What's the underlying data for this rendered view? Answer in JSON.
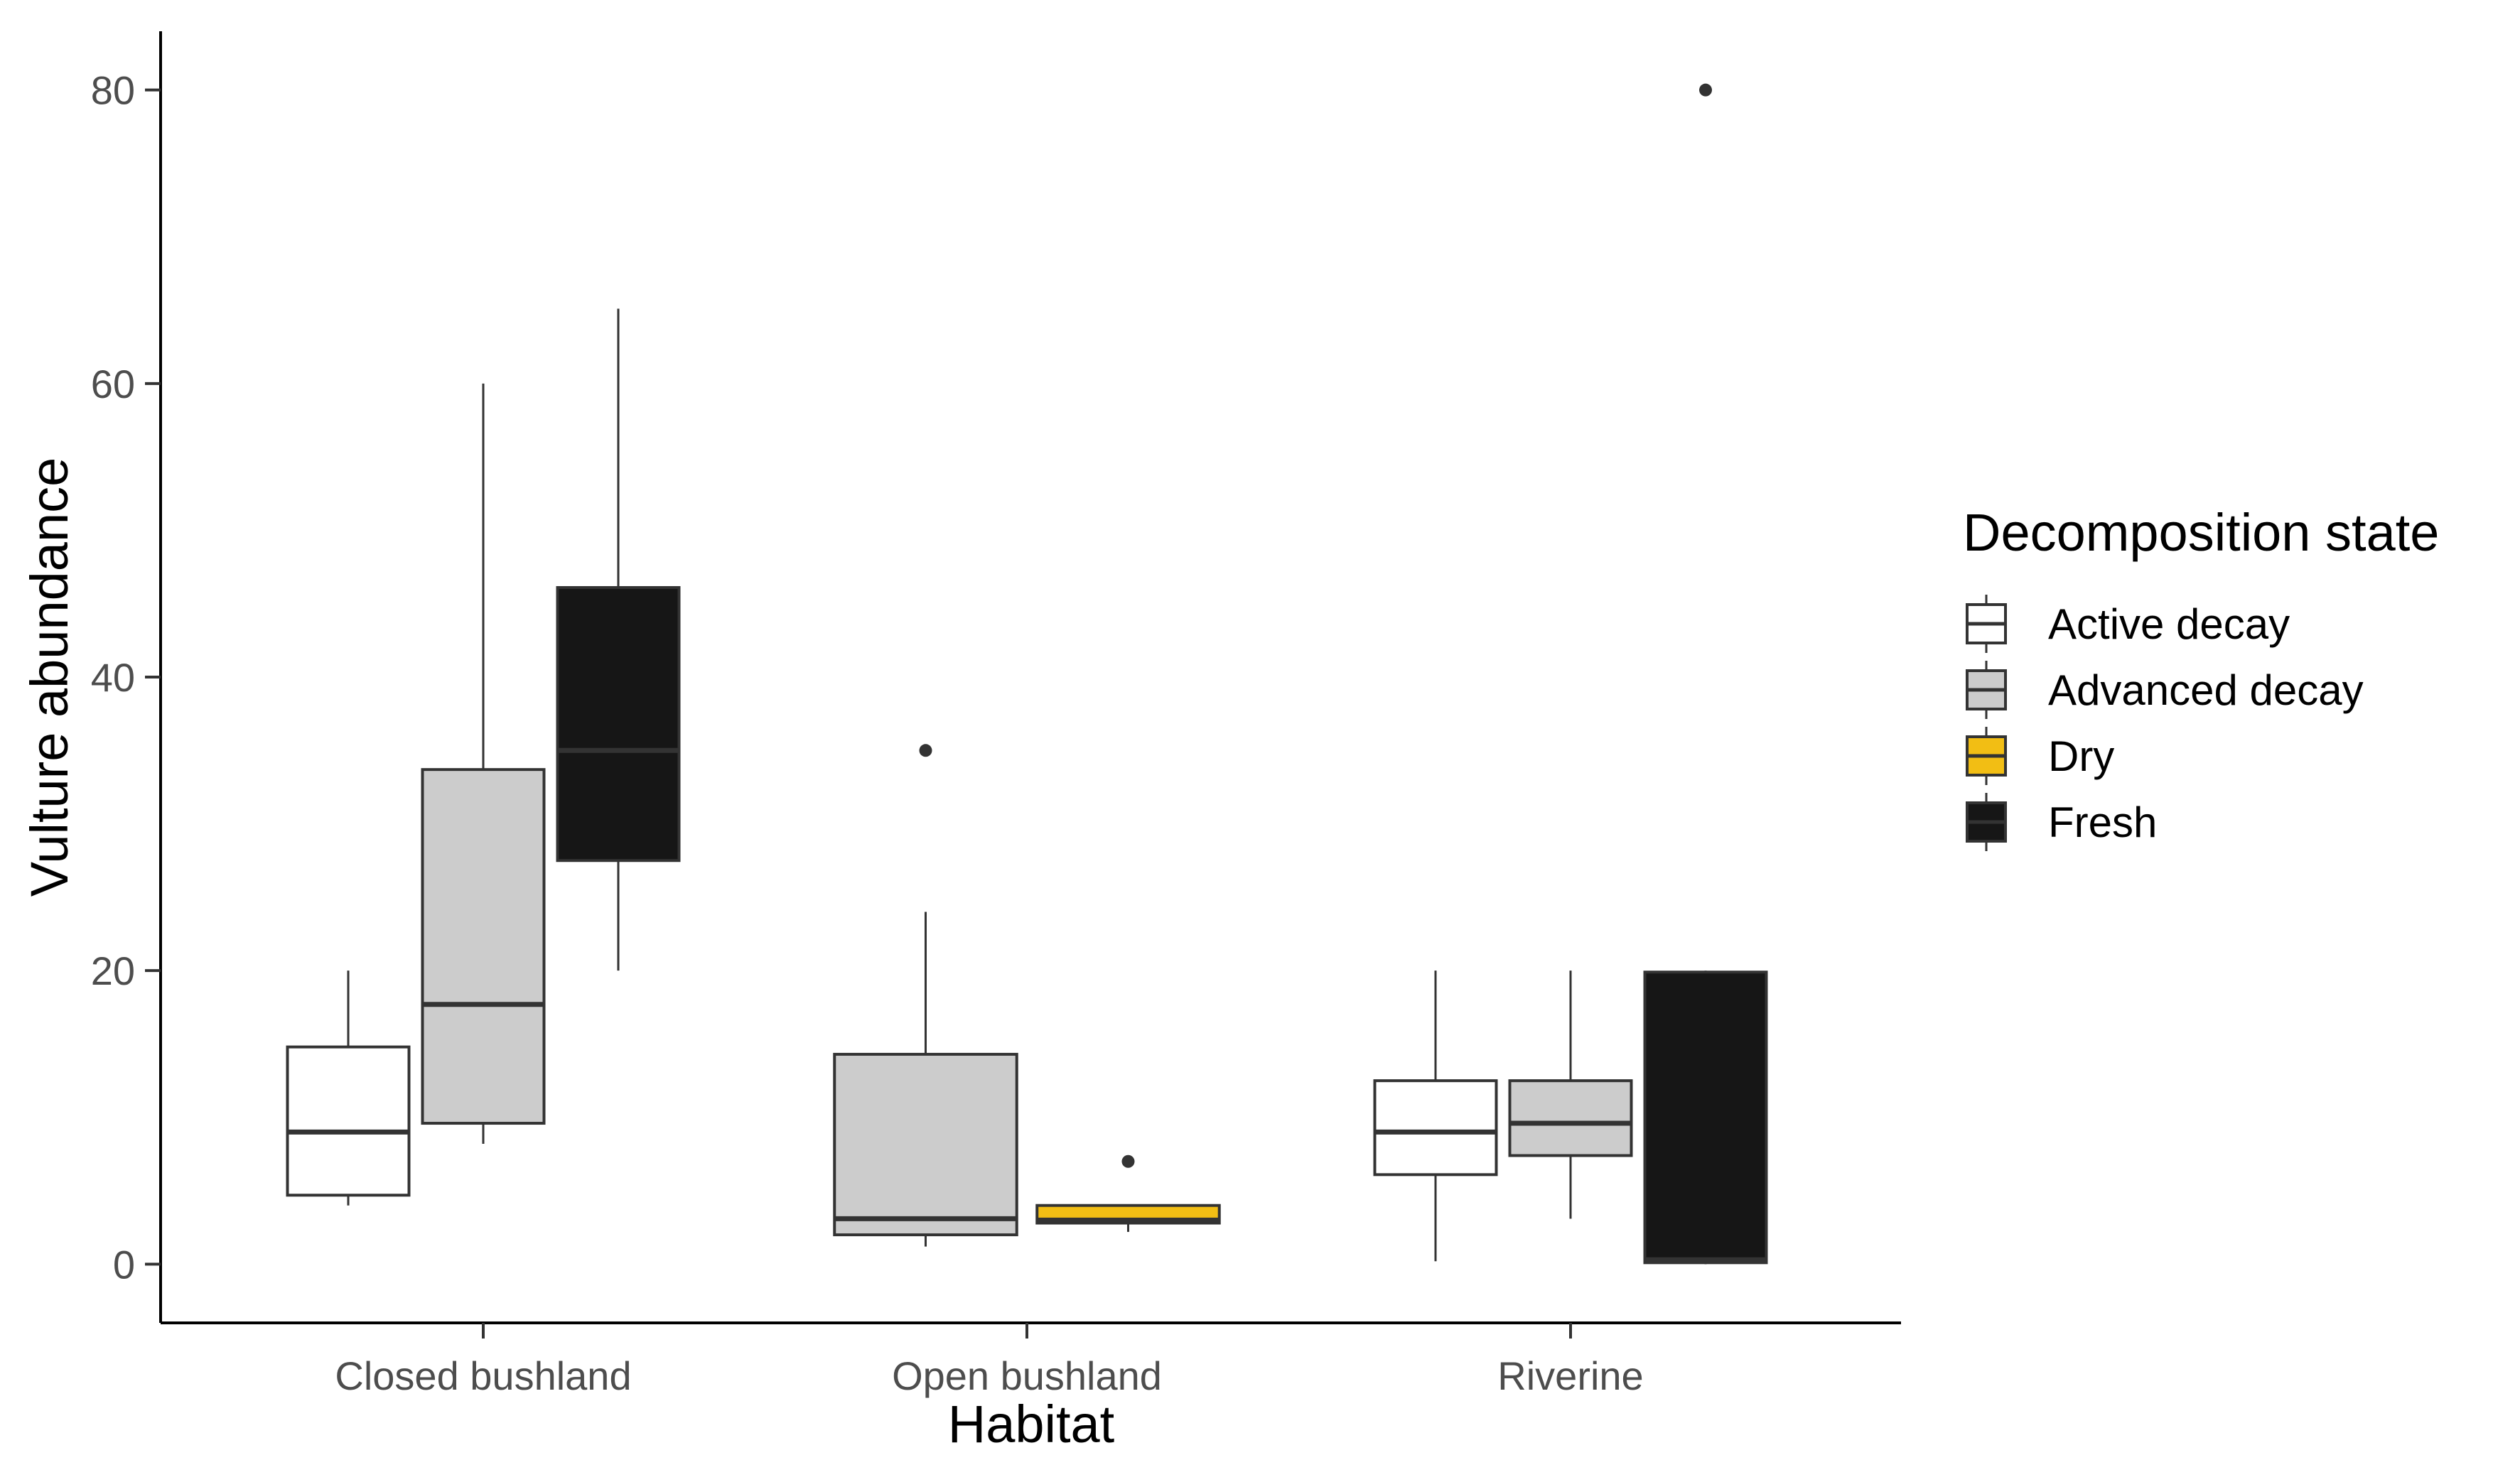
{
  "chart_data": {
    "type": "boxplot",
    "title": "",
    "xlabel": "Habitat",
    "ylabel": "Vulture abundance",
    "categories": [
      "Closed bushland",
      "Open bushland",
      "Riverine"
    ],
    "ylim": [
      -4,
      84
    ],
    "yticks": [
      0,
      20,
      40,
      60,
      80
    ],
    "grid": false,
    "legend": {
      "title": "Decomposition state",
      "position": "right",
      "entries": [
        {
          "label": "Active decay",
          "color": "#ffffff"
        },
        {
          "label": "Advanced decay",
          "color": "#cccccc"
        },
        {
          "label": "Dry",
          "color": "#f2be14"
        },
        {
          "label": "Fresh",
          "color": "#161616"
        }
      ]
    },
    "boxes": [
      {
        "category": "Closed bushland",
        "state": "Active decay",
        "slot": 0,
        "n_slots": 3,
        "fill": "#ffffff",
        "median_color": "#333333",
        "whisker_low": 4,
        "q1": 4.7,
        "median": 9,
        "q3": 14.8,
        "whisker_high": 20,
        "outliers": []
      },
      {
        "category": "Closed bushland",
        "state": "Advanced decay",
        "slot": 1,
        "n_slots": 3,
        "fill": "#cccccc",
        "median_color": "#333333",
        "whisker_low": 8.2,
        "q1": 9.6,
        "median": 17.7,
        "q3": 33.7,
        "whisker_high": 60,
        "outliers": []
      },
      {
        "category": "Closed bushland",
        "state": "Fresh",
        "slot": 2,
        "n_slots": 3,
        "fill": "#161616",
        "median_color": "#333333",
        "whisker_low": 20,
        "q1": 27.5,
        "median": 35,
        "q3": 46.1,
        "whisker_high": 65.1,
        "outliers": []
      },
      {
        "category": "Open bushland",
        "state": "Advanced decay",
        "slot": 0,
        "n_slots": 2,
        "fill": "#cccccc",
        "median_color": "#333333",
        "whisker_low": 1.2,
        "q1": 2,
        "median": 3.1,
        "q3": 14.3,
        "whisker_high": 24,
        "outliers": [
          35
        ]
      },
      {
        "category": "Open bushland",
        "state": "Dry",
        "slot": 1,
        "n_slots": 2,
        "fill": "#f2be14",
        "median_color": "#333333",
        "whisker_low": 2.2,
        "q1": 2.8,
        "median": 3,
        "q3": 4,
        "whisker_high": 4,
        "outliers": [
          7
        ]
      },
      {
        "category": "Riverine",
        "state": "Active decay",
        "slot": 0,
        "n_slots": 3,
        "fill": "#ffffff",
        "median_color": "#333333",
        "whisker_low": 0.2,
        "q1": 6.1,
        "median": 9,
        "q3": 12.5,
        "whisker_high": 20,
        "outliers": []
      },
      {
        "category": "Riverine",
        "state": "Advanced decay",
        "slot": 1,
        "n_slots": 3,
        "fill": "#cccccc",
        "median_color": "#333333",
        "whisker_low": 3.1,
        "q1": 7.4,
        "median": 9.6,
        "q3": 12.5,
        "whisker_high": 20,
        "outliers": []
      },
      {
        "category": "Riverine",
        "state": "Fresh",
        "slot": 2,
        "n_slots": 3,
        "fill": "#161616",
        "median_color": "#333333",
        "whisker_low": 0,
        "q1": 0.1,
        "median": 0.3,
        "q3": 19.9,
        "whisker_high": 20,
        "outliers": [
          80
        ]
      }
    ]
  }
}
